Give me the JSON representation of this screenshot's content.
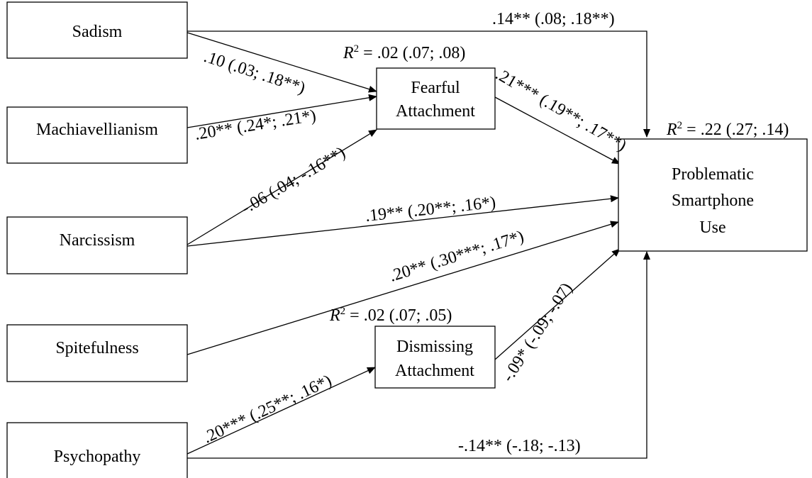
{
  "nodes": {
    "sadism": "Sadism",
    "machiavellianism": "Machiavellianism",
    "narcissism": "Narcissism",
    "spitefulness": "Spitefulness",
    "psychopathy": "Psychopathy",
    "fearful_l1": "Fearful",
    "fearful_l2": "Attachment",
    "dismissing_l1": "Dismissing",
    "dismissing_l2": "Attachment",
    "psu_l1": "Problematic",
    "psu_l2": "Smartphone",
    "psu_l3": "Use"
  },
  "r2": {
    "fearful": {
      "symbol": "R",
      "sup": "2",
      "value": " = .02 (.07; .08)"
    },
    "dismissing": {
      "symbol": "R",
      "sup": "2",
      "value": " = .02 (.07; .05)"
    },
    "psu": {
      "symbol": "R",
      "sup": "2",
      "value": " = .22 (.27; .14)"
    }
  },
  "paths": {
    "sadism_psu": ".14** (.08; .18**)",
    "sadism_fearful": ".10 (.03; .18**)",
    "mach_fearful": ".20** (.24*; .21*)",
    "narc_fearful": "-.06 (.04; -.16**)",
    "fearful_psu": ".21*** (.19**; .17**)",
    "narc_psu": ".19** (.20**; .16*)",
    "spite_psu": ".20** (.30***; .17*)",
    "dismissing_psu": "-.09* (-.09; -.07)",
    "psycho_dismissing": ".20*** (.25**; .16*)",
    "psycho_psu": "-.14** (-.18; -.13)"
  }
}
